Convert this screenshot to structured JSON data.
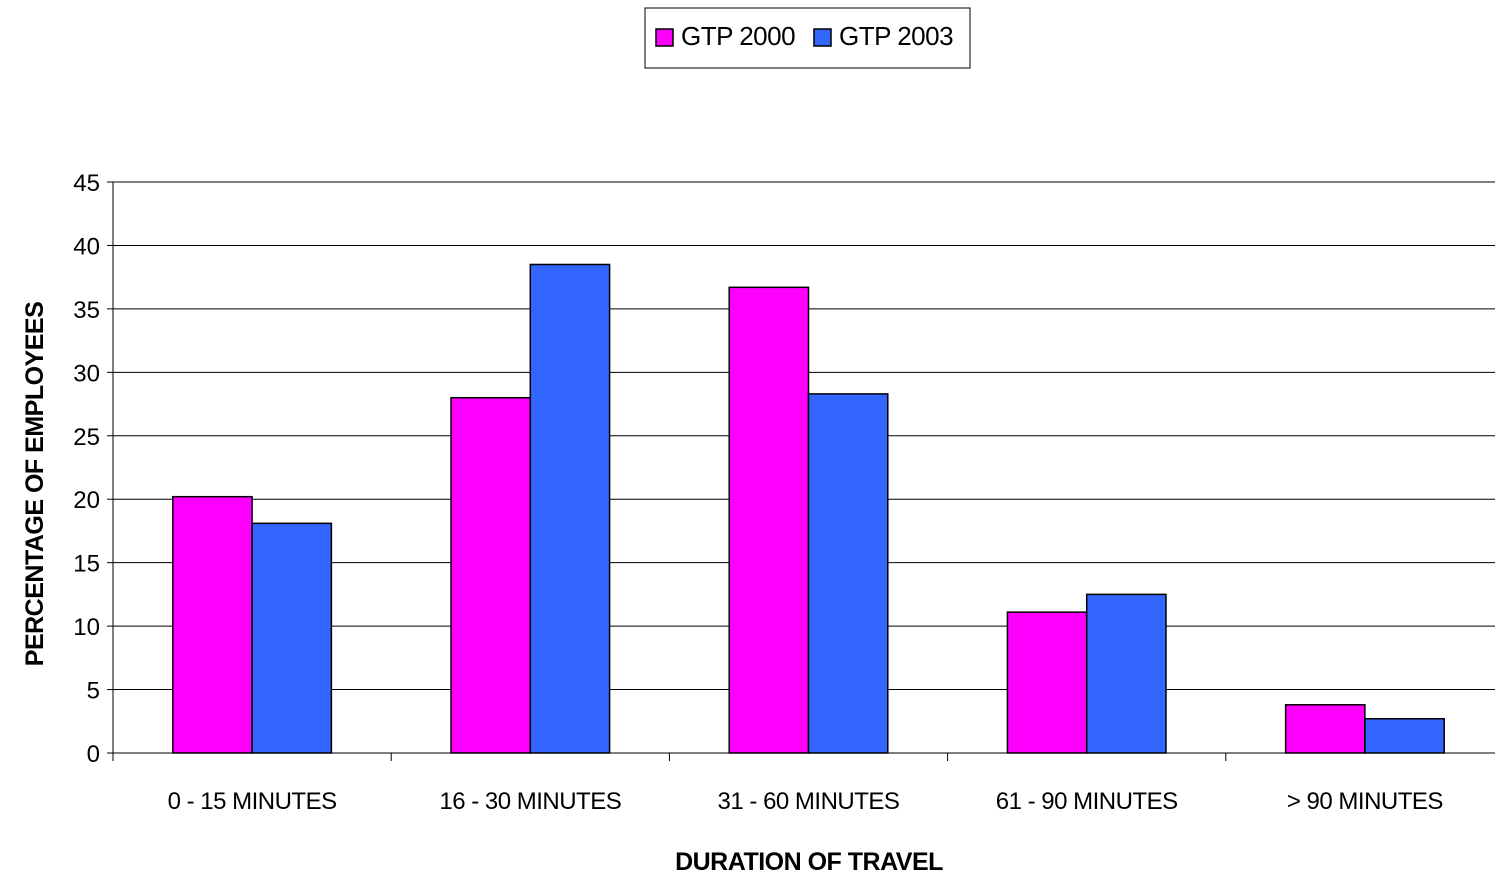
{
  "chart_data": {
    "type": "bar",
    "title": "",
    "xlabel": "DURATION OF TRAVEL",
    "ylabel": "PERCENTAGE OF EMPLOYEES",
    "categories": [
      "0 - 15 MINUTES",
      "16 - 30 MINUTES",
      "31 - 60 MINUTES",
      "61 - 90 MINUTES",
      "> 90 MINUTES"
    ],
    "series": [
      {
        "name": "GTP 2000",
        "color": "#ff00ff",
        "values": [
          20.2,
          28.0,
          36.7,
          11.1,
          3.8
        ]
      },
      {
        "name": "GTP 2003",
        "color": "#3366ff",
        "values": [
          18.1,
          38.5,
          28.3,
          12.5,
          2.7
        ]
      }
    ],
    "ylim": [
      0,
      45
    ],
    "yticks": [
      0,
      5,
      10,
      15,
      20,
      25,
      30,
      35,
      40,
      45
    ],
    "grid": true,
    "legend_position": "top-center"
  }
}
